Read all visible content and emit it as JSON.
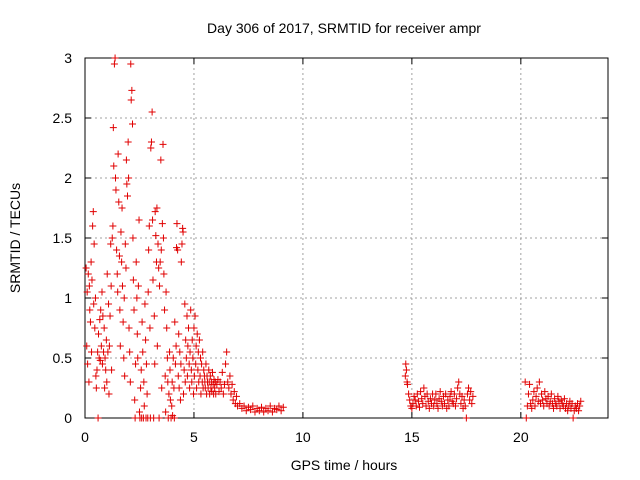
{
  "chart_data": {
    "type": "scatter",
    "title": "Day 306 of 2017, SRMTID for receiver ampr",
    "xlabel": "GPS time / hours",
    "ylabel": "SRMTID / TECUs",
    "xlim": [
      0,
      24
    ],
    "ylim": [
      0,
      3
    ],
    "xticks": [
      "0",
      "5",
      "10",
      "15",
      "20"
    ],
    "xtick_values": [
      0,
      5,
      10,
      15,
      20
    ],
    "yticks": [
      "0",
      "0.5",
      "1",
      "1.5",
      "2",
      "2.5",
      "3"
    ],
    "ytick_values": [
      0,
      0.5,
      1,
      1.5,
      2,
      2.5,
      3
    ],
    "grid": true,
    "legend": "none",
    "marker": "+",
    "color": "#e00000",
    "points": [
      [
        0.05,
        1.25
      ],
      [
        0.08,
        0.6
      ],
      [
        0.1,
        1.05
      ],
      [
        0.12,
        0.45
      ],
      [
        0.15,
        1.2
      ],
      [
        0.18,
        0.3
      ],
      [
        0.2,
        1.1
      ],
      [
        0.22,
        0.9
      ],
      [
        0.25,
        0.8
      ],
      [
        0.28,
        1.3
      ],
      [
        0.3,
        0.55
      ],
      [
        0.32,
        1.15
      ],
      [
        0.35,
        1.6
      ],
      [
        0.38,
        1.72
      ],
      [
        0.4,
        0.95
      ],
      [
        0.42,
        1.45
      ],
      [
        0.45,
        0.75
      ],
      [
        0.48,
        1.0
      ],
      [
        0.5,
        0.35
      ],
      [
        0.52,
        0.25
      ],
      [
        0.55,
        0.4
      ],
      [
        0.58,
        0.55
      ],
      [
        0.6,
        0.0
      ],
      [
        0.62,
        0.7
      ],
      [
        0.65,
        0.5
      ],
      [
        0.68,
        0.82
      ],
      [
        0.7,
        0.48
      ],
      [
        0.72,
        0.9
      ],
      [
        0.75,
        0.6
      ],
      [
        0.78,
        1.05
      ],
      [
        0.8,
        0.45
      ],
      [
        0.82,
        0.85
      ],
      [
        0.85,
        0.55
      ],
      [
        0.88,
        0.75
      ],
      [
        0.9,
        0.25
      ],
      [
        0.92,
        0.5
      ],
      [
        0.95,
        0.4
      ],
      [
        0.98,
        0.65
      ],
      [
        1.0,
        0.3
      ],
      [
        1.02,
        1.2
      ],
      [
        1.05,
        0.55
      ],
      [
        1.08,
        0.95
      ],
      [
        1.1,
        0.2
      ],
      [
        1.12,
        0.6
      ],
      [
        1.15,
        0.85
      ],
      [
        1.18,
        1.45
      ],
      [
        1.2,
        1.1
      ],
      [
        1.22,
        0.4
      ],
      [
        1.25,
        1.5
      ],
      [
        1.28,
        1.6
      ],
      [
        1.3,
        2.42
      ],
      [
        1.32,
        2.1
      ],
      [
        1.35,
        2.95
      ],
      [
        1.38,
        3.0
      ],
      [
        1.4,
        2.0
      ],
      [
        1.42,
        1.9
      ],
      [
        1.45,
        1.4
      ],
      [
        1.48,
        1.2
      ],
      [
        1.5,
        1.05
      ],
      [
        1.52,
        2.2
      ],
      [
        1.55,
        1.8
      ],
      [
        1.58,
        1.35
      ],
      [
        1.6,
        0.9
      ],
      [
        1.62,
        0.6
      ],
      [
        1.65,
        1.55
      ],
      [
        1.68,
        1.3
      ],
      [
        1.7,
        1.75
      ],
      [
        1.72,
        1.1
      ],
      [
        1.75,
        0.8
      ],
      [
        1.78,
        0.5
      ],
      [
        1.8,
        1.0
      ],
      [
        1.82,
        0.35
      ],
      [
        1.85,
        1.45
      ],
      [
        1.88,
        1.25
      ],
      [
        1.9,
        2.15
      ],
      [
        1.92,
        1.95
      ],
      [
        1.95,
        1.85
      ],
      [
        1.98,
        2.3
      ],
      [
        2.0,
        2.0
      ],
      [
        2.02,
        0.75
      ],
      [
        2.05,
        0.55
      ],
      [
        2.08,
        0.3
      ],
      [
        2.1,
        2.95
      ],
      [
        2.12,
        2.65
      ],
      [
        2.15,
        2.73
      ],
      [
        2.18,
        2.45
      ],
      [
        2.2,
        1.5
      ],
      [
        2.22,
        1.15
      ],
      [
        2.25,
        0.9
      ],
      [
        2.28,
        0.15
      ],
      [
        2.3,
        0.0
      ],
      [
        2.32,
        0.45
      ],
      [
        2.35,
        1.3
      ],
      [
        2.38,
        1.0
      ],
      [
        2.4,
        0.7
      ],
      [
        2.42,
        0.5
      ],
      [
        2.45,
        1.1
      ],
      [
        2.48,
        1.65
      ],
      [
        2.5,
        0.05
      ],
      [
        2.52,
        0.0
      ],
      [
        2.55,
        0.25
      ],
      [
        2.58,
        0.4
      ],
      [
        2.6,
        0.0
      ],
      [
        2.62,
        0.8
      ],
      [
        2.65,
        0.55
      ],
      [
        2.68,
        0.0
      ],
      [
        2.7,
        0.3
      ],
      [
        2.72,
        0.1
      ],
      [
        2.75,
        0.95
      ],
      [
        2.78,
        0.65
      ],
      [
        2.8,
        0.0
      ],
      [
        2.82,
        0.45
      ],
      [
        2.85,
        0.2
      ],
      [
        2.88,
        0.0
      ],
      [
        2.9,
        1.05
      ],
      [
        2.92,
        1.4
      ],
      [
        2.95,
        1.6
      ],
      [
        2.98,
        0.75
      ],
      [
        3.0,
        0.0
      ],
      [
        3.02,
        2.25
      ],
      [
        3.05,
        2.3
      ],
      [
        3.08,
        2.55
      ],
      [
        3.1,
        1.65
      ],
      [
        3.12,
        1.15
      ],
      [
        3.15,
        0.0
      ],
      [
        3.18,
        0.85
      ],
      [
        3.2,
        0.45
      ],
      [
        3.22,
        1.72
      ],
      [
        3.25,
        1.52
      ],
      [
        3.28,
        1.3
      ],
      [
        3.3,
        1.75
      ],
      [
        3.32,
        0.6
      ],
      [
        3.35,
        1.45
      ],
      [
        3.38,
        1.25
      ],
      [
        3.4,
        0.0
      ],
      [
        3.42,
        1.1
      ],
      [
        3.45,
        1.3
      ],
      [
        3.48,
        2.15
      ],
      [
        3.5,
        1.4
      ],
      [
        3.52,
        0.25
      ],
      [
        3.55,
        1.62
      ],
      [
        3.58,
        2.28
      ],
      [
        3.6,
        1.5
      ],
      [
        3.62,
        1.2
      ],
      [
        3.65,
        0.9
      ],
      [
        3.68,
        0.35
      ],
      [
        3.7,
        0.05
      ],
      [
        3.72,
        1.05
      ],
      [
        3.75,
        0.75
      ],
      [
        3.78,
        0.5
      ],
      [
        3.8,
        0.3
      ],
      [
        3.82,
        0.0
      ],
      [
        3.85,
        0.2
      ],
      [
        3.88,
        0.55
      ],
      [
        3.9,
        0.4
      ],
      [
        3.92,
        0.15
      ],
      [
        3.95,
        0.0
      ],
      [
        3.98,
        0.1
      ],
      [
        4.0,
        0.3
      ],
      [
        4.02,
        0.02
      ],
      [
        4.05,
        0.5
      ],
      [
        4.08,
        0.25
      ],
      [
        4.1,
        0.0
      ],
      [
        4.12,
        0.8
      ],
      [
        4.15,
        0.45
      ],
      [
        4.18,
        0.6
      ],
      [
        4.2,
        1.42
      ],
      [
        4.22,
        1.62
      ],
      [
        4.25,
        1.4
      ],
      [
        4.28,
        0.35
      ],
      [
        4.3,
        0.7
      ],
      [
        4.32,
        0.25
      ],
      [
        4.35,
        0.55
      ],
      [
        4.38,
        0.15
      ],
      [
        4.4,
        0.45
      ],
      [
        4.42,
        1.3
      ],
      [
        4.45,
        1.45
      ],
      [
        4.48,
        1.58
      ],
      [
        4.5,
        1.55
      ],
      [
        4.52,
        0.2
      ],
      [
        4.55,
        0.4
      ],
      [
        4.58,
        0.95
      ],
      [
        4.6,
        0.3
      ],
      [
        4.62,
        0.65
      ],
      [
        4.65,
        0.5
      ],
      [
        4.68,
        0.85
      ],
      [
        4.7,
        0.35
      ],
      [
        4.72,
        0.6
      ],
      [
        4.75,
        0.75
      ],
      [
        4.78,
        0.45
      ],
      [
        4.8,
        0.25
      ],
      [
        4.82,
        0.55
      ],
      [
        4.85,
        0.9
      ],
      [
        4.88,
        0.4
      ],
      [
        4.9,
        0.3
      ],
      [
        4.92,
        0.65
      ],
      [
        4.95,
        0.5
      ],
      [
        4.98,
        0.2
      ],
      [
        5.0,
        0.75
      ],
      [
        5.02,
        0.35
      ],
      [
        5.05,
        0.85
      ],
      [
        5.08,
        0.45
      ],
      [
        5.1,
        0.6
      ],
      [
        5.12,
        0.25
      ],
      [
        5.15,
        0.7
      ],
      [
        5.18,
        0.4
      ],
      [
        5.2,
        0.55
      ],
      [
        5.22,
        0.3
      ],
      [
        5.25,
        0.65
      ],
      [
        5.28,
        0.35
      ],
      [
        5.3,
        0.5
      ],
      [
        5.32,
        0.2
      ],
      [
        5.35,
        0.45
      ],
      [
        5.38,
        0.3
      ],
      [
        5.4,
        0.55
      ],
      [
        5.42,
        0.25
      ],
      [
        5.45,
        0.4
      ],
      [
        5.48,
        0.35
      ],
      [
        5.5,
        0.3
      ],
      [
        5.52,
        0.25
      ],
      [
        5.55,
        0.45
      ],
      [
        5.58,
        0.2
      ],
      [
        5.6,
        0.35
      ],
      [
        5.62,
        0.3
      ],
      [
        5.65,
        0.25
      ],
      [
        5.68,
        0.4
      ],
      [
        5.7,
        0.3
      ],
      [
        5.72,
        0.2
      ],
      [
        5.75,
        0.35
      ],
      [
        5.78,
        0.25
      ],
      [
        5.8,
        0.3
      ],
      [
        5.82,
        0.22
      ],
      [
        5.85,
        0.38
      ],
      [
        5.88,
        0.28
      ],
      [
        5.9,
        0.2
      ],
      [
        5.92,
        0.32
      ],
      [
        5.95,
        0.25
      ],
      [
        5.98,
        0.3
      ],
      [
        6.0,
        0.2
      ],
      [
        6.05,
        0.28
      ],
      [
        6.1,
        0.32
      ],
      [
        6.15,
        0.22
      ],
      [
        6.2,
        0.3
      ],
      [
        6.25,
        0.25
      ],
      [
        6.3,
        0.38
      ],
      [
        6.35,
        0.2
      ],
      [
        6.4,
        0.28
      ],
      [
        6.45,
        0.45
      ],
      [
        6.5,
        0.55
      ],
      [
        6.55,
        0.3
      ],
      [
        6.6,
        0.25
      ],
      [
        6.65,
        0.35
      ],
      [
        6.7,
        0.2
      ],
      [
        6.75,
        0.28
      ],
      [
        6.8,
        0.15
      ],
      [
        6.85,
        0.22
      ],
      [
        6.9,
        0.12
      ],
      [
        6.95,
        0.18
      ],
      [
        7.0,
        0.1
      ],
      [
        7.1,
        0.12
      ],
      [
        7.2,
        0.08
      ],
      [
        7.3,
        0.1
      ],
      [
        7.4,
        0.06
      ],
      [
        7.5,
        0.09
      ],
      [
        7.6,
        0.07
      ],
      [
        7.7,
        0.1
      ],
      [
        7.8,
        0.05
      ],
      [
        7.9,
        0.08
      ],
      [
        8.0,
        0.06
      ],
      [
        8.1,
        0.09
      ],
      [
        8.2,
        0.05
      ],
      [
        8.3,
        0.08
      ],
      [
        8.4,
        0.06
      ],
      [
        8.5,
        0.1
      ],
      [
        8.6,
        0.05
      ],
      [
        8.7,
        0.08
      ],
      [
        8.8,
        0.07
      ],
      [
        8.9,
        0.1
      ],
      [
        9.0,
        0.06
      ],
      [
        9.1,
        0.09
      ],
      [
        14.7,
        0.35
      ],
      [
        14.72,
        0.45
      ],
      [
        14.75,
        0.4
      ],
      [
        14.78,
        0.3
      ],
      [
        14.8,
        0.28
      ],
      [
        14.85,
        0.2
      ],
      [
        14.9,
        0.15
      ],
      [
        14.95,
        0.1
      ],
      [
        15.0,
        0.08
      ],
      [
        15.05,
        0.12
      ],
      [
        15.1,
        0.18
      ],
      [
        15.15,
        0.15
      ],
      [
        15.2,
        0.1
      ],
      [
        15.25,
        0.2
      ],
      [
        15.3,
        0.14
      ],
      [
        15.35,
        0.09
      ],
      [
        15.4,
        0.22
      ],
      [
        15.45,
        0.16
      ],
      [
        15.5,
        0.12
      ],
      [
        15.55,
        0.25
      ],
      [
        15.6,
        0.18
      ],
      [
        15.65,
        0.1
      ],
      [
        15.7,
        0.2
      ],
      [
        15.75,
        0.14
      ],
      [
        15.8,
        0.08
      ],
      [
        15.85,
        0.16
      ],
      [
        15.9,
        0.12
      ],
      [
        15.95,
        0.2
      ],
      [
        16.0,
        0.1
      ],
      [
        16.05,
        0.15
      ],
      [
        16.1,
        0.2
      ],
      [
        16.15,
        0.12
      ],
      [
        16.2,
        0.08
      ],
      [
        16.25,
        0.16
      ],
      [
        16.3,
        0.22
      ],
      [
        16.35,
        0.14
      ],
      [
        16.4,
        0.1
      ],
      [
        16.45,
        0.18
      ],
      [
        16.5,
        0.12
      ],
      [
        16.55,
        0.2
      ],
      [
        16.6,
        0.08
      ],
      [
        16.65,
        0.15
      ],
      [
        16.7,
        0.1
      ],
      [
        16.75,
        0.18
      ],
      [
        16.8,
        0.22
      ],
      [
        16.85,
        0.14
      ],
      [
        16.9,
        0.12
      ],
      [
        16.95,
        0.2
      ],
      [
        17.0,
        0.1
      ],
      [
        17.05,
        0.16
      ],
      [
        17.1,
        0.25
      ],
      [
        17.15,
        0.3
      ],
      [
        17.2,
        0.2
      ],
      [
        17.25,
        0.12
      ],
      [
        17.3,
        0.18
      ],
      [
        17.35,
        0.08
      ],
      [
        17.4,
        0.15
      ],
      [
        17.45,
        0.1
      ],
      [
        17.5,
        0.0
      ],
      [
        17.55,
        0.2
      ],
      [
        17.6,
        0.25
      ],
      [
        17.65,
        0.15
      ],
      [
        17.7,
        0.22
      ],
      [
        17.75,
        0.12
      ],
      [
        17.8,
        0.18
      ],
      [
        20.2,
        0.3
      ],
      [
        20.25,
        0.0
      ],
      [
        20.3,
        0.1
      ],
      [
        20.35,
        0.2
      ],
      [
        20.4,
        0.28
      ],
      [
        20.45,
        0.12
      ],
      [
        20.5,
        0.08
      ],
      [
        20.55,
        0.15
      ],
      [
        20.6,
        0.22
      ],
      [
        20.65,
        0.1
      ],
      [
        20.7,
        0.18
      ],
      [
        20.75,
        0.25
      ],
      [
        20.8,
        0.14
      ],
      [
        20.85,
        0.3
      ],
      [
        20.9,
        0.12
      ],
      [
        20.95,
        0.2
      ],
      [
        21.0,
        0.15
      ],
      [
        21.05,
        0.1
      ],
      [
        21.1,
        0.22
      ],
      [
        21.15,
        0.16
      ],
      [
        21.2,
        0.12
      ],
      [
        21.25,
        0.18
      ],
      [
        21.3,
        0.1
      ],
      [
        21.35,
        0.14
      ],
      [
        21.4,
        0.2
      ],
      [
        21.45,
        0.12
      ],
      [
        21.5,
        0.08
      ],
      [
        21.55,
        0.16
      ],
      [
        21.6,
        0.12
      ],
      [
        21.65,
        0.1
      ],
      [
        21.7,
        0.18
      ],
      [
        21.75,
        0.14
      ],
      [
        21.8,
        0.08
      ],
      [
        21.85,
        0.15
      ],
      [
        21.9,
        0.12
      ],
      [
        21.95,
        0.1
      ],
      [
        22.0,
        0.16
      ],
      [
        22.05,
        0.08
      ],
      [
        22.1,
        0.12
      ],
      [
        22.15,
        0.06
      ],
      [
        22.2,
        0.1
      ],
      [
        22.25,
        0.14
      ],
      [
        22.3,
        0.08
      ],
      [
        22.35,
        0.12
      ],
      [
        22.4,
        0.0
      ],
      [
        22.45,
        0.06
      ],
      [
        22.5,
        0.1
      ],
      [
        22.55,
        0.08
      ],
      [
        22.6,
        0.12
      ],
      [
        22.65,
        0.06
      ],
      [
        22.7,
        0.1
      ],
      [
        22.75,
        0.14
      ]
    ]
  }
}
